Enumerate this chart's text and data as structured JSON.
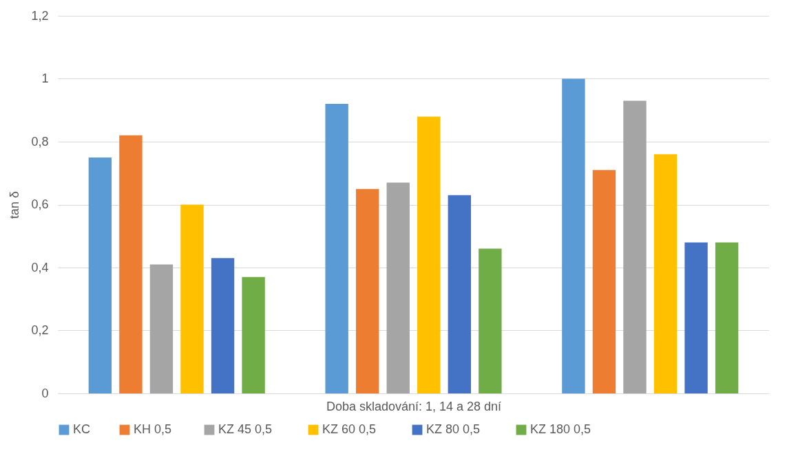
{
  "chart_data": {
    "type": "bar",
    "xlabel": "Doba skladování: 1, 14 a 28 dní",
    "ylabel": "tan δ",
    "categories": [
      null,
      null,
      null
    ],
    "series": [
      {
        "name": "KC",
        "color": "#5b9bd5",
        "values": [
          0.75,
          0.92,
          1.0
        ]
      },
      {
        "name": "KH  0,5",
        "color": "#ed7d31",
        "values": [
          0.82,
          0.65,
          0.71
        ]
      },
      {
        "name": "KZ  45  0,5",
        "color": "#a5a5a5",
        "values": [
          0.41,
          0.67,
          0.93
        ]
      },
      {
        "name": "KZ  60  0,5",
        "color": "#ffc000",
        "values": [
          0.6,
          0.88,
          0.76
        ]
      },
      {
        "name": "KZ  80  0,5",
        "color": "#4472c4",
        "values": [
          0.43,
          0.63,
          0.48
        ]
      },
      {
        "name": "KZ  180  0,5",
        "color": "#70ad47",
        "values": [
          0.37,
          0.46,
          0.48
        ]
      }
    ],
    "ylim": [
      0,
      1.2
    ],
    "yticks": [
      0,
      {
        "value": 0.2,
        "label": "0,2"
      },
      {
        "value": 0.4,
        "label": "0,4"
      },
      {
        "value": 0.6,
        "label": "0,6"
      },
      {
        "value": 0.8,
        "label": "0,8"
      },
      1,
      {
        "value": 1.2,
        "label": "1,2"
      }
    ],
    "grid": "y",
    "legend": "bottom"
  }
}
